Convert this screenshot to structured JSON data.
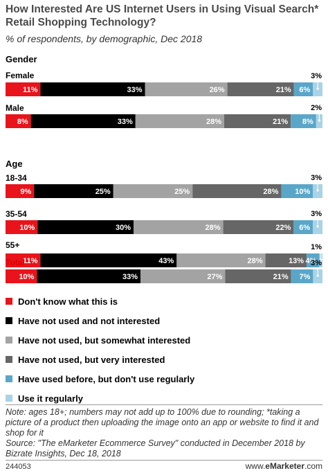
{
  "header": {
    "title": "How Interested Are US Internet Users in Using Visual Search* Retail Shopping Technology?",
    "subtitle": "% of respondents, by demographic, Dec 2018"
  },
  "chart_data": {
    "type": "bar",
    "orientation": "horizontal",
    "stacked": true,
    "groups": [
      {
        "label": "Gender",
        "rows": [
          "Female",
          "Male"
        ]
      },
      {
        "label": "Age",
        "rows": [
          "18-34",
          "35-54",
          "55+"
        ]
      },
      {
        "label": "",
        "rows": [
          "Total"
        ]
      }
    ],
    "categories": [
      "Female",
      "Male",
      "18-34",
      "35-54",
      "55+",
      "Total"
    ],
    "series": [
      {
        "name": "Don't know what this is",
        "color": "#e8131b",
        "values": [
          11,
          8,
          9,
          10,
          11,
          10
        ]
      },
      {
        "name": "Have not used and not interested",
        "color": "#000000",
        "values": [
          33,
          33,
          25,
          30,
          43,
          33
        ]
      },
      {
        "name": "Have not used, but somewhat interested",
        "color": "#a3a3a3",
        "values": [
          26,
          28,
          25,
          28,
          28,
          27
        ]
      },
      {
        "name": "Have not used, but very interested",
        "color": "#666666",
        "values": [
          21,
          21,
          28,
          22,
          13,
          21
        ]
      },
      {
        "name": "Have used before, but don't use regularly",
        "color": "#5aa6c8",
        "values": [
          6,
          8,
          10,
          6,
          4,
          7
        ]
      },
      {
        "name": "Use it regularly",
        "color": "#a9d3e6",
        "values": [
          3,
          2,
          3,
          3,
          1,
          3
        ]
      }
    ],
    "value_suffix": "%",
    "legend_position": "bottom"
  },
  "notes": {
    "text": "Note: ages 18+; numbers may not add up to 100% due to rounding; *taking a picture of a product then uploading the image onto an app or website to find it and shop for it",
    "source": "Source: \"The eMarketer Ecommerce Survey\" conducted in December 2018 by Bizrate Insights, Dec 18, 2018"
  },
  "footer": {
    "id": "244053",
    "brand_prefix": "www.",
    "brand_name": "eMarketer",
    "brand_suffix": ".com"
  }
}
